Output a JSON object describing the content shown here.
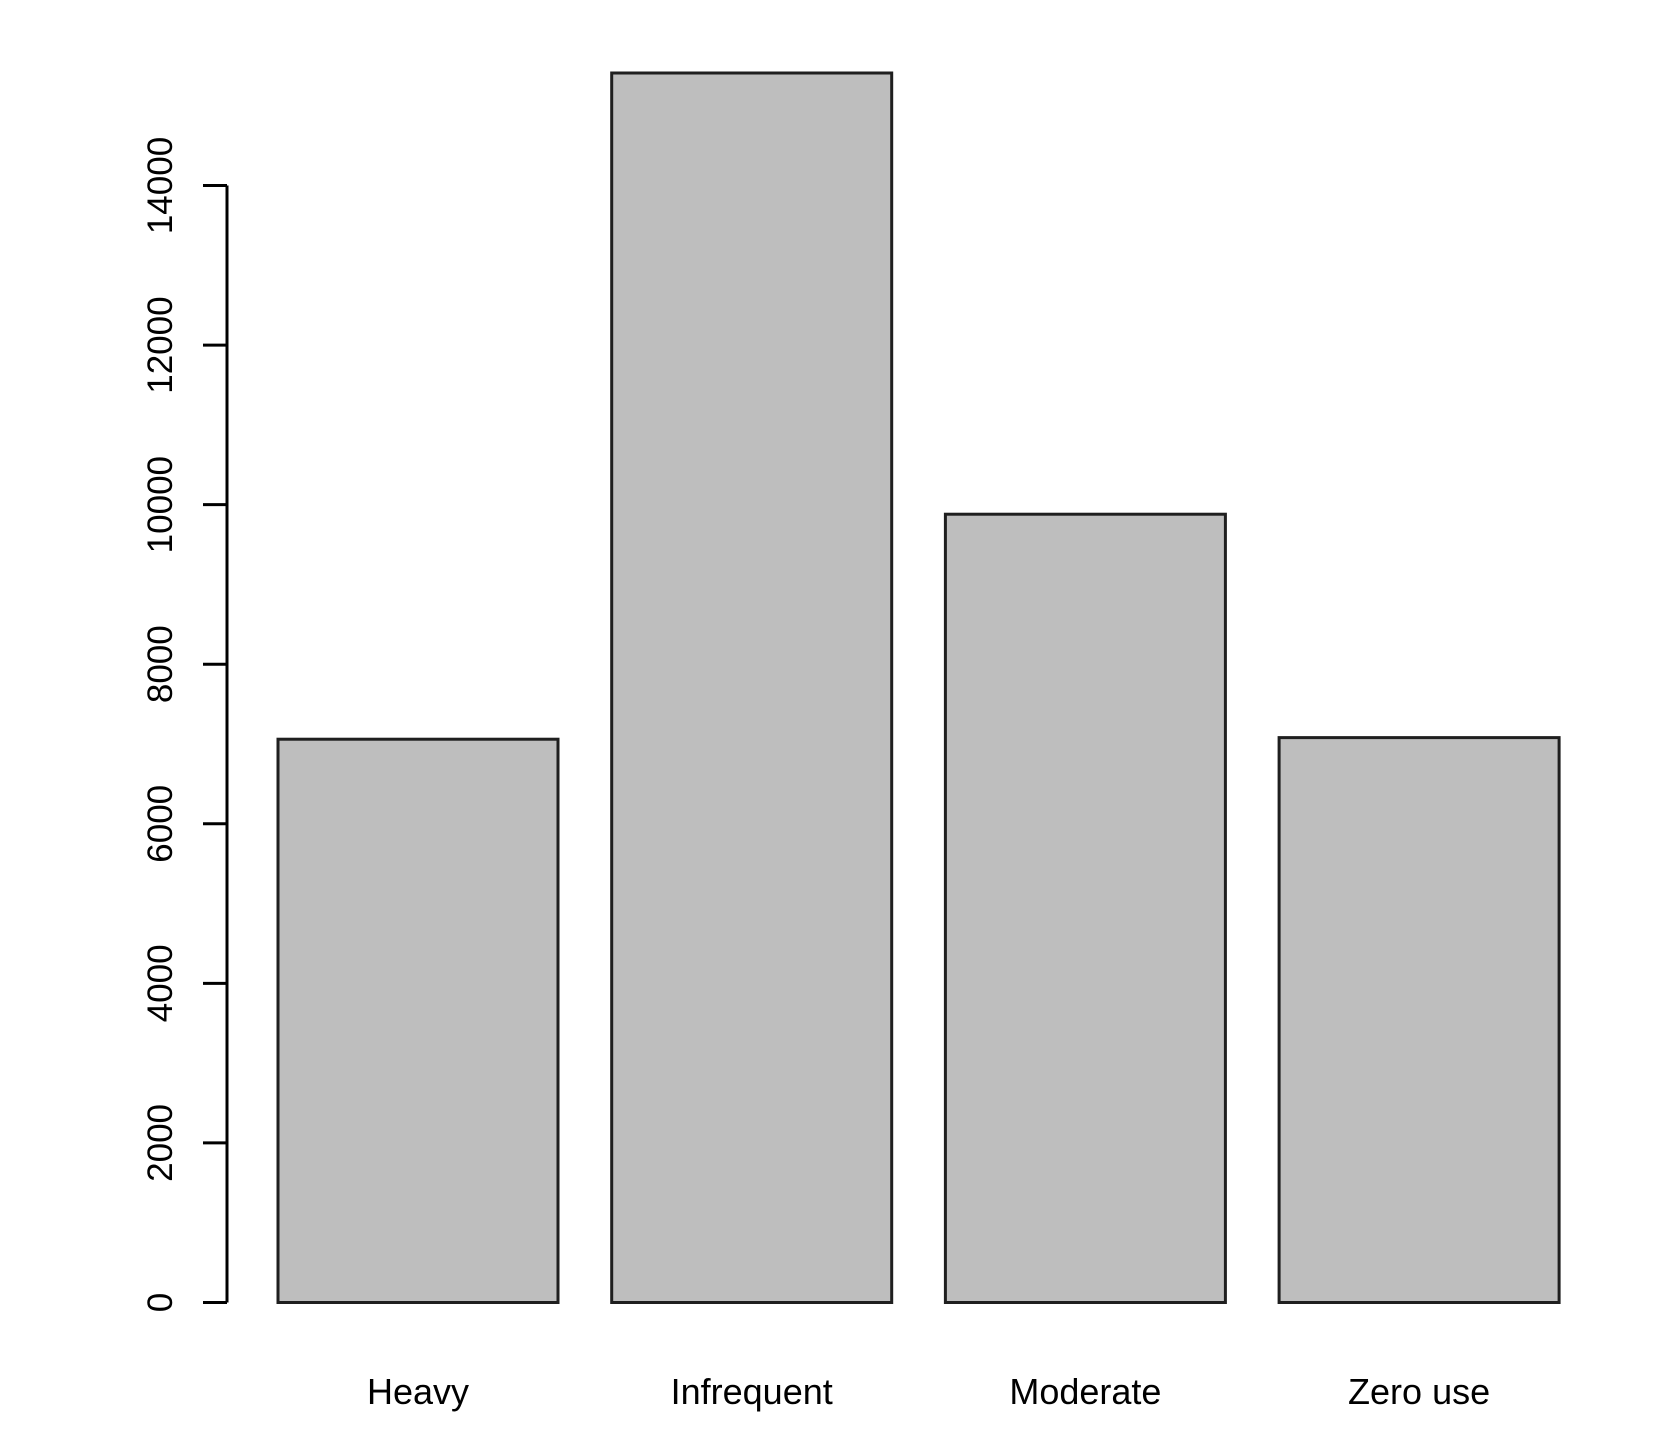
{
  "chart_data": {
    "type": "bar",
    "title": "",
    "xlabel": "",
    "ylabel": "",
    "categories": [
      "Heavy",
      "Infrequent",
      "Moderate",
      "Zero use"
    ],
    "values": [
      7060,
      15410,
      9880,
      7080
    ],
    "y_ticks": [
      0,
      2000,
      4000,
      6000,
      8000,
      10000,
      12000,
      14000
    ],
    "ylim": [
      0,
      15500
    ],
    "axis_tick_max": 14000,
    "grid": false,
    "legend": false,
    "colors": {
      "bar_fill": "#bebebe",
      "bar_stroke": "#1f1f1f",
      "axis": "#000000",
      "text": "#000000",
      "background": "#ffffff"
    }
  }
}
